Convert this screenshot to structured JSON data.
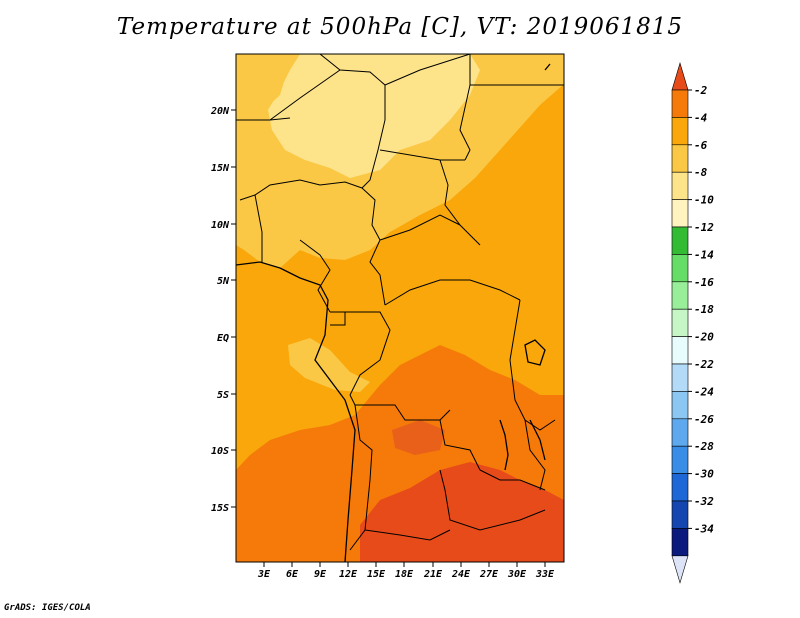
{
  "title": "Temperature at 500hPa [C], VT: 2019061815",
  "credit": "GrADS: IGES/COLA",
  "map": {
    "lat_labels": [
      "20N",
      "15N",
      "10N",
      "5N",
      "EQ",
      "5S",
      "10S",
      "15S"
    ],
    "lon_labels": [
      "3E",
      "6E",
      "9E",
      "12E",
      "15E",
      "18E",
      "21E",
      "24E",
      "27E",
      "30E",
      "33E"
    ]
  },
  "colorbar": {
    "labels": [
      "-2",
      "-4",
      "-6",
      "-8",
      "-10",
      "-12",
      "-14",
      "-16",
      "-18",
      "-20",
      "-22",
      "-24",
      "-26",
      "-28",
      "-30",
      "-32",
      "-34"
    ],
    "colors": [
      "#e84b1a",
      "#f57a0a",
      "#f9a70a",
      "#fbc845",
      "#fde48a",
      "#fff3bf",
      "#33bb33",
      "#66dd66",
      "#99ee99",
      "#c6f5c6",
      "#e8fbfd",
      "#b3daf7",
      "#8cc6f3",
      "#5ea9ee",
      "#3a8de6",
      "#1d68d6",
      "#1546b0",
      "#0a1a7d",
      "#dde4f7"
    ]
  },
  "legend_colors": {
    "band_lt_m8": "#fbc845",
    "band_m6_m8": "#f9a70a",
    "band_m4_m6": "#f57a0a",
    "band_m2_m4": "#e84b1a"
  }
}
